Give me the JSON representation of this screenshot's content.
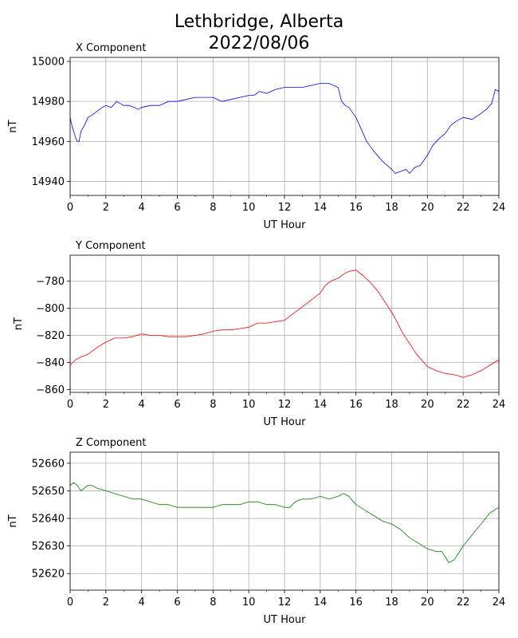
{
  "title_line1": "Lethbridge, Alberta",
  "title_line2": "2022/08/06",
  "chart_data": [
    {
      "type": "line",
      "title": "X Component",
      "xlabel": "UT Hour",
      "ylabel": "nT",
      "xlim": [
        0,
        24
      ],
      "ylim": [
        14933,
        15002
      ],
      "x_ticks": [
        0,
        2,
        4,
        6,
        8,
        10,
        12,
        14,
        16,
        18,
        20,
        22,
        24
      ],
      "y_ticks": [
        14940,
        14960,
        14980,
        15000
      ],
      "grid": true,
      "color": "#0000ff",
      "series": [
        {
          "x": [
            0,
            0.1,
            0.2,
            0.3,
            0.4,
            0.5,
            0.6,
            0.8,
            1,
            1.2,
            1.5,
            1.8,
            2,
            2.3,
            2.6,
            3,
            3.3,
            3.6,
            3.8,
            4,
            4.5,
            5,
            5.5,
            6,
            6.5,
            7,
            7.5,
            8,
            8.5,
            9,
            9.5,
            10,
            10.3,
            10.6,
            11,
            11.5,
            12,
            12.5,
            13,
            13.5,
            14,
            14.5,
            15,
            15.2,
            15.4,
            15.6,
            16,
            16.3,
            16.6,
            17,
            17.5,
            18,
            18.2,
            18.5,
            18.8,
            19,
            19.3,
            19.6,
            20,
            20.3,
            20.6,
            21,
            21.3,
            21.6,
            22,
            22.5,
            23,
            23.3,
            23.6,
            23.8,
            24
          ],
          "y": [
            14972,
            14968,
            14965,
            14962,
            14960,
            14960,
            14965,
            14968,
            14972,
            14973,
            14975,
            14977,
            14978,
            14977,
            14980,
            14978,
            14978,
            14977,
            14976,
            14977,
            14978,
            14978,
            14980,
            14980,
            14981,
            14982,
            14982,
            14982,
            14980,
            14981,
            14982,
            14983,
            14983,
            14985,
            14984,
            14986,
            14987,
            14987,
            14987,
            14988,
            14989,
            14989,
            14987,
            14980,
            14978,
            14977,
            14972,
            14966,
            14960,
            14955,
            14950,
            14946,
            14944,
            14945,
            14946,
            14944,
            14947,
            14948,
            14953,
            14958,
            14961,
            14964,
            14968,
            14970,
            14972,
            14971,
            14974,
            14976,
            14979,
            14986,
            14985
          ]
        }
      ]
    },
    {
      "type": "line",
      "title": "Y Component",
      "xlabel": "UT Hour",
      "ylabel": "nT",
      "xlim": [
        0,
        24
      ],
      "ylim": [
        -862,
        -761
      ],
      "x_ticks": [
        0,
        2,
        4,
        6,
        8,
        10,
        12,
        14,
        16,
        18,
        20,
        22,
        24
      ],
      "y_ticks": [
        -780,
        -800,
        -820,
        -840,
        -860
      ],
      "grid": true,
      "color": "#ff0000",
      "series": [
        {
          "x": [
            0,
            0.3,
            0.6,
            1,
            1.5,
            2,
            2.5,
            3,
            3.5,
            4,
            4.5,
            5,
            5.5,
            6,
            6.5,
            7,
            7.5,
            8,
            8.5,
            9,
            9.5,
            10,
            10.5,
            11,
            11.5,
            12,
            12.5,
            13,
            13.5,
            14,
            14.3,
            14.6,
            15,
            15.3,
            15.6,
            16,
            16.4,
            16.8,
            17.2,
            17.6,
            18,
            18.3,
            18.6,
            19,
            19.4,
            19.8,
            20,
            20.5,
            21,
            21.5,
            21.8,
            22,
            22.5,
            23,
            23.5,
            24
          ],
          "y": [
            -842,
            -838,
            -836,
            -834,
            -829,
            -825,
            -822,
            -822,
            -821,
            -819,
            -820,
            -820,
            -821,
            -821,
            -821,
            -820,
            -819,
            -817,
            -816,
            -816,
            -815,
            -814,
            -811,
            -811,
            -810,
            -809,
            -804,
            -799,
            -794,
            -789,
            -783,
            -780,
            -778,
            -775,
            -773,
            -772,
            -776,
            -781,
            -787,
            -795,
            -803,
            -810,
            -818,
            -826,
            -834,
            -840,
            -843,
            -846,
            -848,
            -849,
            -850,
            -851,
            -849,
            -846,
            -842,
            -838
          ]
        }
      ]
    },
    {
      "type": "line",
      "title": "Z Component",
      "xlabel": "UT Hour",
      "ylabel": "nT",
      "xlim": [
        0,
        24
      ],
      "ylim": [
        52614,
        52664
      ],
      "x_ticks": [
        0,
        2,
        4,
        6,
        8,
        10,
        12,
        14,
        16,
        18,
        20,
        22,
        24
      ],
      "y_ticks": [
        52620,
        52630,
        52640,
        52650,
        52660
      ],
      "grid": true,
      "color": "#008000",
      "series": [
        {
          "x": [
            0,
            0.2,
            0.4,
            0.6,
            0.8,
            1,
            1.2,
            1.5,
            2,
            2.5,
            3,
            3.5,
            4,
            4.5,
            5,
            5.5,
            6,
            6.5,
            7,
            7.5,
            8,
            8.5,
            9,
            9.5,
            10,
            10.5,
            11,
            11.5,
            12,
            12.3,
            12.6,
            13,
            13.5,
            14,
            14.5,
            15,
            15.3,
            15.6,
            16,
            16.5,
            17,
            17.5,
            18,
            18.5,
            19,
            19.5,
            20,
            20.5,
            20.8,
            21,
            21.2,
            21.5,
            21.8,
            22,
            22.5,
            23,
            23.5,
            24
          ],
          "y": [
            52652,
            52653,
            52652,
            52650,
            52651,
            52652,
            52652,
            52651,
            52650,
            52649,
            52648,
            52647,
            52647,
            52646,
            52645,
            52645,
            52644,
            52644,
            52644,
            52644,
            52644,
            52645,
            52645,
            52645,
            52646,
            52646,
            52645,
            52645,
            52644,
            52644,
            52646,
            52647,
            52647,
            52648,
            52647,
            52648,
            52649,
            52648,
            52645,
            52643,
            52641,
            52639,
            52638,
            52636,
            52633,
            52631,
            52629,
            52628,
            52628,
            52626,
            52624,
            52625,
            52628,
            52630,
            52634,
            52638,
            52642,
            52644
          ]
        }
      ]
    }
  ]
}
